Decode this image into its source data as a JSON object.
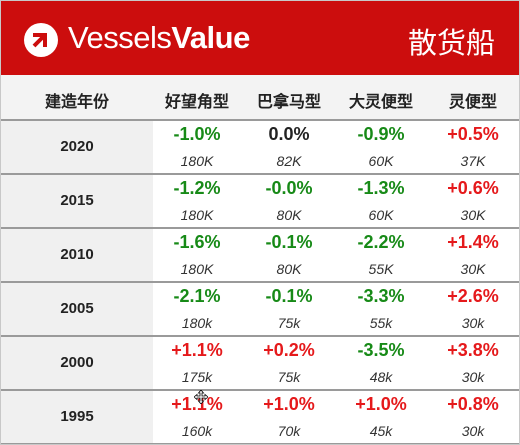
{
  "header": {
    "brand_part1": "Vessels",
    "brand_part2": "Value",
    "title": "散货船"
  },
  "columns": [
    "建造年份",
    "好望角型",
    "巴拿马型",
    "大灵便型",
    "灵便型"
  ],
  "colors": {
    "header_bg": "#cc0d0d",
    "positive": "#e5191b",
    "negative": "#178a17",
    "neutral": "#222222"
  },
  "rows": [
    {
      "year": "2020",
      "cells": [
        {
          "pct": "-1.0%",
          "size": "180K",
          "tone": "green"
        },
        {
          "pct": "0.0%",
          "size": "82K",
          "tone": "black"
        },
        {
          "pct": "-0.9%",
          "size": "60K",
          "tone": "green"
        },
        {
          "pct": "+0.5%",
          "size": "37K",
          "tone": "red"
        }
      ]
    },
    {
      "year": "2015",
      "cells": [
        {
          "pct": "-1.2%",
          "size": "180K",
          "tone": "green"
        },
        {
          "pct": "-0.0%",
          "size": "80K",
          "tone": "green"
        },
        {
          "pct": "-1.3%",
          "size": "60K",
          "tone": "green"
        },
        {
          "pct": "+0.6%",
          "size": "30K",
          "tone": "red"
        }
      ]
    },
    {
      "year": "2010",
      "cells": [
        {
          "pct": "-1.6%",
          "size": "180K",
          "tone": "green"
        },
        {
          "pct": "-0.1%",
          "size": "80K",
          "tone": "green"
        },
        {
          "pct": "-2.2%",
          "size": "55K",
          "tone": "green"
        },
        {
          "pct": "+1.4%",
          "size": "30K",
          "tone": "red"
        }
      ]
    },
    {
      "year": "2005",
      "cells": [
        {
          "pct": "-2.1%",
          "size": "180k",
          "tone": "green"
        },
        {
          "pct": "-0.1%",
          "size": "75k",
          "tone": "green"
        },
        {
          "pct": "-3.3%",
          "size": "55k",
          "tone": "green"
        },
        {
          "pct": "+2.6%",
          "size": "30k",
          "tone": "red"
        }
      ]
    },
    {
      "year": "2000",
      "cells": [
        {
          "pct": "+1.1%",
          "size": "175k",
          "tone": "red"
        },
        {
          "pct": "+0.2%",
          "size": "75k",
          "tone": "red"
        },
        {
          "pct": "-3.5%",
          "size": "48k",
          "tone": "green"
        },
        {
          "pct": "+3.8%",
          "size": "30k",
          "tone": "red"
        }
      ]
    },
    {
      "year": "1995",
      "cells": [
        {
          "pct": "+1.1%",
          "size": "160k",
          "tone": "red"
        },
        {
          "pct": "+1.0%",
          "size": "70k",
          "tone": "red"
        },
        {
          "pct": "+1.0%",
          "size": "45k",
          "tone": "red"
        },
        {
          "pct": "+0.8%",
          "size": "30k",
          "tone": "red"
        }
      ]
    }
  ],
  "cursor_icon": "move-cursor-icon"
}
